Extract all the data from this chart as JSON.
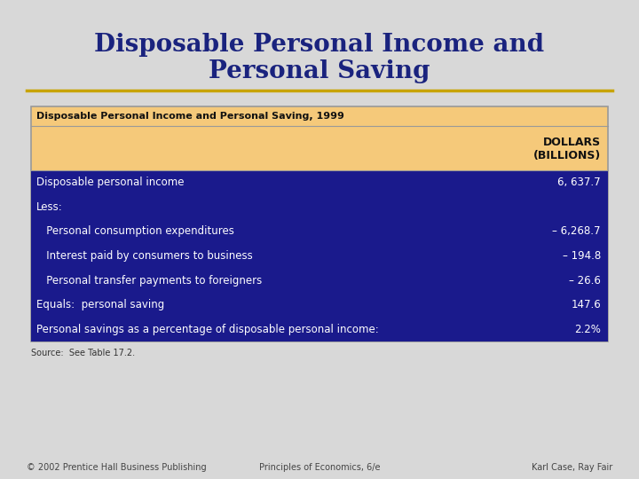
{
  "title_line1": "Disposable Personal Income and",
  "title_line2": "Personal Saving",
  "title_color": "#1a237e",
  "slide_bg": "#d8d8d8",
  "gold_line_color": "#c8a400",
  "table_title": "Disposable Personal Income and Personal Saving, 1999",
  "table_header_bg": "#f5c97a",
  "table_body_bg": "#1a1a8c",
  "table_text_color": "#ffffff",
  "table_header_text": "#111111",
  "col_header_line1": "DOLLARS",
  "col_header_line2": "(BILLIONS)",
  "rows": [
    {
      "label": "Disposable personal income",
      "value": "6, 637.7",
      "indent": 0
    },
    {
      "label": "Less:",
      "value": "",
      "indent": 0
    },
    {
      "label": "   Personal consumption expenditures",
      "value": "– 6,268.7",
      "indent": 0
    },
    {
      "label": "   Interest paid by consumers to business",
      "value": "– 194.8",
      "indent": 0
    },
    {
      "label": "   Personal transfer payments to foreigners",
      "value": "– 26.6",
      "indent": 0
    },
    {
      "label": "Equals:  personal saving",
      "value": "147.6",
      "indent": 0
    },
    {
      "label": "Personal savings as a percentage of disposable personal income:",
      "value": "2.2%",
      "indent": 0
    }
  ],
  "source": "Source:  See Table 17.2.",
  "footer_left": "© 2002 Prentice Hall Business Publishing",
  "footer_center": "Principles of Economics, 6/e",
  "footer_right": "Karl Case, Ray Fair"
}
